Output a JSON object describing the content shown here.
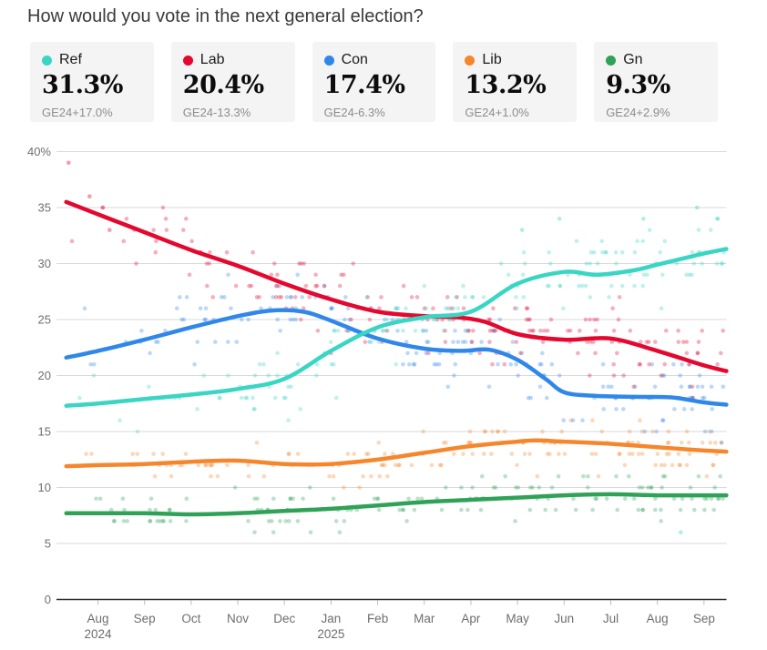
{
  "title": "How would you vote in the next general election?",
  "cards": [
    {
      "label": "Ref",
      "value": "31.3%",
      "delta": "GE24+17.0%",
      "color": "#3ad5c3"
    },
    {
      "label": "Lab",
      "value": "20.4%",
      "delta": "GE24-13.3%",
      "color": "#e4072e"
    },
    {
      "label": "Con",
      "value": "17.4%",
      "delta": "GE24-6.3%",
      "color": "#2f87ea"
    },
    {
      "label": "Lib",
      "value": "13.2%",
      "delta": "GE24+1.0%",
      "color": "#f6862c"
    },
    {
      "label": "Gn",
      "value": "9.3%",
      "delta": "GE24+2.9%",
      "color": "#2fa257"
    }
  ],
  "chart_data": {
    "type": "line+scatter",
    "x_unit": "months offset from Aug 2024 tick",
    "xlim": [
      -0.75,
      13.5
    ],
    "ylim": [
      0,
      40
    ],
    "grid": true,
    "y_ticks": [
      0,
      5,
      10,
      15,
      20,
      25,
      30,
      35,
      40
    ],
    "y_top_tick_label": "40%",
    "x_ticks": [
      {
        "label": "Aug",
        "year": "2024"
      },
      {
        "label": "Sep"
      },
      {
        "label": "Oct"
      },
      {
        "label": "Nov"
      },
      {
        "label": "Dec"
      },
      {
        "label": "Jan",
        "year": "2025"
      },
      {
        "label": "Feb"
      },
      {
        "label": "Mar"
      },
      {
        "label": "Apr"
      },
      {
        "label": "May"
      },
      {
        "label": "Jun"
      },
      {
        "label": "Jul"
      },
      {
        "label": "Aug"
      },
      {
        "label": "Sep"
      }
    ],
    "series": [
      {
        "name": "Ref",
        "color": "#3ad5c3",
        "end_value": 31.3,
        "trend": [
          [
            -0.68,
            17.3
          ],
          [
            0,
            17.5
          ],
          [
            1,
            17.9
          ],
          [
            2,
            18.3
          ],
          [
            3,
            18.8
          ],
          [
            4,
            19.7
          ],
          [
            5,
            22.2
          ],
          [
            6,
            24.3
          ],
          [
            7,
            25.2
          ],
          [
            8,
            25.7
          ],
          [
            9,
            28.2
          ],
          [
            10,
            29.25
          ],
          [
            10.7,
            29.0
          ],
          [
            11.5,
            29.4
          ],
          [
            12,
            29.9
          ],
          [
            13,
            30.9
          ],
          [
            13.48,
            31.3
          ]
        ]
      },
      {
        "name": "Lab",
        "color": "#e4072e",
        "end_value": 20.4,
        "trend": [
          [
            -0.68,
            35.5
          ],
          [
            0,
            34.4
          ],
          [
            1,
            32.8
          ],
          [
            2,
            31.2
          ],
          [
            3,
            29.8
          ],
          [
            4,
            28.2
          ],
          [
            5,
            26.8
          ],
          [
            6,
            25.7
          ],
          [
            7,
            25.3
          ],
          [
            7.7,
            25.2
          ],
          [
            8.3,
            24.8
          ],
          [
            9,
            23.7
          ],
          [
            10,
            23.2
          ],
          [
            11,
            23.3
          ],
          [
            12,
            22.2
          ],
          [
            13,
            20.9
          ],
          [
            13.48,
            20.4
          ]
        ]
      },
      {
        "name": "Con",
        "color": "#2f87ea",
        "end_value": 17.4,
        "trend": [
          [
            -0.68,
            21.6
          ],
          [
            0,
            22.2
          ],
          [
            1,
            23.2
          ],
          [
            2,
            24.3
          ],
          [
            3,
            25.3
          ],
          [
            3.7,
            25.8
          ],
          [
            4.4,
            25.7
          ],
          [
            5,
            24.9
          ],
          [
            6,
            23.3
          ],
          [
            7,
            22.4
          ],
          [
            7.8,
            22.2
          ],
          [
            8.4,
            22.3
          ],
          [
            9,
            21.4
          ],
          [
            9.6,
            19.7
          ],
          [
            10,
            18.5
          ],
          [
            10.6,
            18.2
          ],
          [
            11.5,
            18.1
          ],
          [
            12.3,
            18.05
          ],
          [
            13,
            17.6
          ],
          [
            13.48,
            17.4
          ]
        ]
      },
      {
        "name": "Lib",
        "color": "#f6862c",
        "end_value": 13.2,
        "trend": [
          [
            -0.68,
            11.9
          ],
          [
            0,
            12.0
          ],
          [
            1,
            12.1
          ],
          [
            2,
            12.3
          ],
          [
            3,
            12.4
          ],
          [
            4,
            12.1
          ],
          [
            5,
            12.1
          ],
          [
            6,
            12.5
          ],
          [
            7,
            13.1
          ],
          [
            8,
            13.7
          ],
          [
            9,
            14.1
          ],
          [
            9.4,
            14.2
          ],
          [
            10,
            14.1
          ],
          [
            11,
            13.9
          ],
          [
            12,
            13.6
          ],
          [
            13,
            13.3
          ],
          [
            13.48,
            13.2
          ]
        ]
      },
      {
        "name": "Gn",
        "color": "#2fa257",
        "end_value": 9.3,
        "trend": [
          [
            -0.68,
            7.7
          ],
          [
            0,
            7.7
          ],
          [
            1,
            7.7
          ],
          [
            2,
            7.6
          ],
          [
            3,
            7.7
          ],
          [
            4,
            7.9
          ],
          [
            5,
            8.1
          ],
          [
            6,
            8.4
          ],
          [
            7,
            8.7
          ],
          [
            8,
            8.9
          ],
          [
            9,
            9.1
          ],
          [
            10,
            9.3
          ],
          [
            11,
            9.4
          ],
          [
            12,
            9.3
          ],
          [
            13,
            9.3
          ],
          [
            13.48,
            9.3
          ]
        ]
      }
    ],
    "scatter": {
      "seed": 20250915,
      "t_min": -0.68,
      "t_max": 13.43,
      "bias_exponent": 0.72,
      "dot_radius": 2.3,
      "dot_opacity": 0.32,
      "value_round": "integer",
      "counts": {
        "Ref": 165,
        "Lab": 175,
        "Con": 175,
        "Lib": 150,
        "Gn": 150
      },
      "sd": {
        "Ref": 1.5,
        "Lab": 1.6,
        "Con": 1.55,
        "Lib": 1.0,
        "Gn": 1.0
      },
      "extra_points": [
        {
          "series": "Lab",
          "t": -0.63,
          "v": 39
        },
        {
          "series": "Lab",
          "t": -0.18,
          "v": 36
        },
        {
          "series": "Lab",
          "t": 0.25,
          "v": 33
        },
        {
          "series": "Ref",
          "t": 9.1,
          "v": 33
        },
        {
          "series": "Ref",
          "t": 9.9,
          "v": 34
        },
        {
          "series": "Ref",
          "t": 11.7,
          "v": 34
        },
        {
          "series": "Ref",
          "t": 12.85,
          "v": 35
        },
        {
          "series": "Ref",
          "t": 13.3,
          "v": 34
        },
        {
          "series": "Ref",
          "t": 12.5,
          "v": 6
        }
      ]
    }
  }
}
